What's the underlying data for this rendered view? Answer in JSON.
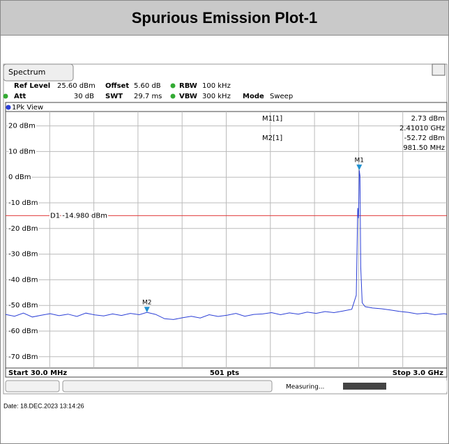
{
  "header": {
    "title": "Spurious Emission Plot-1"
  },
  "tab": "Spectrum",
  "settings": {
    "ref_level": {
      "label": "Ref Level",
      "value": "25.60 dBm"
    },
    "offset": {
      "label": "Offset",
      "value": "5.60 dB"
    },
    "rbw": {
      "label": "RBW",
      "value": "100 kHz"
    },
    "att": {
      "label": "Att",
      "value": "30 dB"
    },
    "swt": {
      "label": "SWT",
      "value": "29.7 ms"
    },
    "vbw": {
      "label": "VBW",
      "value": "300 kHz"
    },
    "mode": {
      "label": "Mode",
      "value": "Sweep"
    }
  },
  "chart_data": {
    "type": "line",
    "view": "1Pk View",
    "color": "#2b3fd6",
    "xlim": [
      30,
      3000
    ],
    "ylim": [
      -74.4,
      25.6
    ],
    "yticks": [
      {
        "value": 20,
        "label": "20 dBm"
      },
      {
        "value": 10,
        "label": "10 dBm"
      },
      {
        "value": 0,
        "label": "0 dBm"
      },
      {
        "value": -10,
        "label": "-10 dBm"
      },
      {
        "value": -20,
        "label": "-20 dBm"
      },
      {
        "value": -30,
        "label": "-30 dBm"
      },
      {
        "value": -40,
        "label": "-40 dBm"
      },
      {
        "value": -50,
        "label": "-50 dBm"
      },
      {
        "value": -60,
        "label": "-60 dBm"
      },
      {
        "value": -70,
        "label": "-70 dBm"
      }
    ],
    "grid": true,
    "x": [
      30,
      90,
      150,
      210,
      270,
      330,
      390,
      450,
      510,
      570,
      630,
      690,
      750,
      810,
      870,
      930,
      981.5,
      1040,
      1100,
      1160,
      1220,
      1280,
      1340,
      1400,
      1460,
      1520,
      1580,
      1640,
      1700,
      1760,
      1820,
      1880,
      1940,
      2000,
      2060,
      2120,
      2180,
      2240,
      2300,
      2360,
      2390,
      2400,
      2405,
      2410.1,
      2415,
      2420,
      2430,
      2450,
      2500,
      2560,
      2620,
      2680,
      2740,
      2800,
      2860,
      2920,
      2980,
      3000
    ],
    "values": [
      -53.5,
      -54.2,
      -53,
      -54.5,
      -53.8,
      -53.2,
      -54,
      -53.4,
      -54.3,
      -53,
      -53.7,
      -54.1,
      -53.3,
      -53.9,
      -53.1,
      -53.6,
      -52.72,
      -53.5,
      -55.2,
      -55.5,
      -54.8,
      -54.2,
      -54.9,
      -53.6,
      -54.3,
      -53.8,
      -53.1,
      -54.2,
      -53.5,
      -53.3,
      -52.8,
      -53.6,
      -52.9,
      -53.4,
      -52.6,
      -53.1,
      -52.4,
      -52.8,
      -52.2,
      -51.5,
      -46,
      -12,
      -16,
      2.73,
      0.5,
      -35,
      -49,
      -50.5,
      -51,
      -51.3,
      -51.8,
      -52.3,
      -52.7,
      -53.3,
      -53,
      -53.6,
      -53.2,
      -53.4
    ],
    "threshold": {
      "label": "D1 -14.980 dBm",
      "value": -14.98,
      "color": "#e03a3a"
    },
    "markers": [
      {
        "name": "M1",
        "table_name": "M1[1]",
        "x": 2410.1,
        "y": 2.73,
        "x_label": "2.41010 GHz",
        "y_label": "2.73 dBm"
      },
      {
        "name": "M2",
        "table_name": "M2[1]",
        "x": 981.5,
        "y": -52.72,
        "x_label": "981.50 MHz",
        "y_label": "-52.72 dBm"
      }
    ],
    "marker_color": "#1e90d0",
    "start": "Start 30.0 MHz",
    "points": "501 pts",
    "stop": "Stop 3.0 GHz"
  },
  "status": "Measuring...",
  "date": "Date: 18.DEC.2023 13:14:26"
}
